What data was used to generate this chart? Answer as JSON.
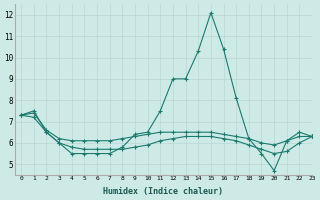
{
  "xlabel": "Humidex (Indice chaleur)",
  "xlim": [
    -0.5,
    23
  ],
  "ylim": [
    4.5,
    12.5
  ],
  "yticks": [
    5,
    6,
    7,
    8,
    9,
    10,
    11,
    12
  ],
  "xticks": [
    0,
    1,
    2,
    3,
    4,
    5,
    6,
    7,
    8,
    9,
    10,
    11,
    12,
    13,
    14,
    15,
    16,
    17,
    18,
    19,
    20,
    21,
    22,
    23
  ],
  "background_color": "#ceeae6",
  "grid_color": "#b8d8d4",
  "line_color": "#1a7a6e",
  "series": [
    [
      7.3,
      7.5,
      6.5,
      6.0,
      5.5,
      5.5,
      5.5,
      5.5,
      5.8,
      6.4,
      6.5,
      7.5,
      9.0,
      9.0,
      10.3,
      12.1,
      10.4,
      8.1,
      6.2,
      5.5,
      4.7,
      6.1,
      6.5,
      6.3
    ],
    [
      7.3,
      7.4,
      6.6,
      6.2,
      6.1,
      6.1,
      6.1,
      6.1,
      6.2,
      6.3,
      6.4,
      6.5,
      6.5,
      6.5,
      6.5,
      6.5,
      6.4,
      6.3,
      6.2,
      6.0,
      5.9,
      6.1,
      6.3,
      6.3
    ],
    [
      7.3,
      7.2,
      6.5,
      6.0,
      5.8,
      5.7,
      5.7,
      5.7,
      5.7,
      5.8,
      5.9,
      6.1,
      6.2,
      6.3,
      6.3,
      6.3,
      6.2,
      6.1,
      5.9,
      5.7,
      5.5,
      5.6,
      6.0,
      6.3
    ]
  ]
}
